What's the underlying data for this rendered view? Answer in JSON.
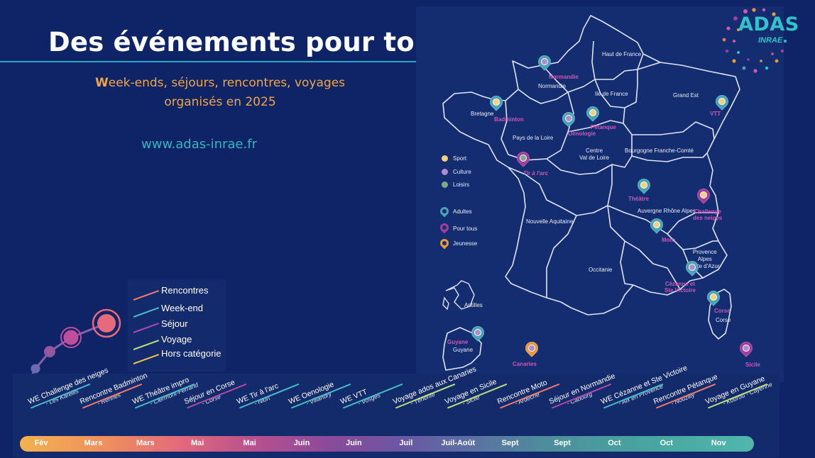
{
  "header": {
    "title": "Des événements pour tous",
    "subtitle_first": "W",
    "subtitle_line1_rest": "eek-ends, séjours, rencontres, voyages",
    "subtitle_line2": "organisés en 2025",
    "website": "www.adas-inrae.fr"
  },
  "logo": {
    "name": "ADAS",
    "sub": "INRAE"
  },
  "colors": {
    "background": "#0f2466",
    "title_rule": "#2aa8c8",
    "subtitle": "#f0a646",
    "website": "#31b6c2",
    "pin_label": "#d255b9",
    "sport": "#f5d27a",
    "culture": "#b28ad1",
    "loisirs": "#7fa98f",
    "adultes": "#4aa3b8",
    "pour_tous": "#a23d9b",
    "jeunesse": "#e79a3c"
  },
  "map": {
    "regions": [
      {
        "name": "Haut de France"
      },
      {
        "name": "Normandie"
      },
      {
        "name": "Ile de France"
      },
      {
        "name": "Grand Est"
      },
      {
        "name": "Bretagne"
      },
      {
        "name": "Pays de la Loire"
      },
      {
        "name": "Centre\nVal de Loire"
      },
      {
        "name": "Bourgogne Franche-Comté"
      },
      {
        "name": "Nouvelle Aquitaine"
      },
      {
        "name": "Auvergne Rhône Alpes"
      },
      {
        "name": "Occitanie"
      },
      {
        "name": "Provence\nAlpes\nCôte d'Azur"
      },
      {
        "name": "Corse"
      },
      {
        "name": "Antilles"
      },
      {
        "name": "Guyane"
      }
    ],
    "pins": [
      {
        "label": "Normandie",
        "pin": "adultes",
        "dot": "culture"
      },
      {
        "label": "Badminton",
        "pin": "adultes",
        "dot": "sport"
      },
      {
        "label": "Oenologie",
        "pin": "adultes",
        "dot": "culture"
      },
      {
        "label": "Pétanque",
        "pin": "adultes",
        "dot": "sport"
      },
      {
        "label": "VTT",
        "pin": "adultes",
        "dot": "sport"
      },
      {
        "label": "Tir à l'arc",
        "pin": "pour_tous",
        "dot": "loisirs"
      },
      {
        "label": "Théâtre",
        "pin": "adultes",
        "dot": "sport"
      },
      {
        "label": "Challenge\ndes neiges",
        "pin": "pour_tous",
        "dot": "sport"
      },
      {
        "label": "Moto",
        "pin": "adultes",
        "dot": "sport"
      },
      {
        "label": "Cézanne et\nSte Victoire",
        "pin": "adultes",
        "dot": "culture"
      },
      {
        "label": "Corse",
        "pin": "adultes",
        "dot": "sport"
      },
      {
        "label": "Guyane",
        "pin": "adultes",
        "dot": "culture"
      },
      {
        "label": "Canaries",
        "pin": "jeunesse",
        "dot": "culture"
      },
      {
        "label": "Sicile",
        "pin": "pour_tous",
        "dot": "culture"
      }
    ],
    "legend_dots": [
      {
        "label": "Sport",
        "color": "#f5d27a"
      },
      {
        "label": "Culture",
        "color": "#b28ad1"
      },
      {
        "label": "Loisirs",
        "color": "#7fa98f"
      }
    ],
    "legend_pins": [
      {
        "label": "Adultes",
        "color": "#4aa3b8"
      },
      {
        "label": "Pour tous",
        "color": "#a23d9b"
      },
      {
        "label": "Jeunesse",
        "color": "#e79a3c"
      }
    ]
  },
  "categories": [
    {
      "label": "Rencontres",
      "color": "#ef7a6a"
    },
    {
      "label": "Week-end",
      "color": "#43bdc8"
    },
    {
      "label": "Séjour",
      "color": "#b04aa5"
    },
    {
      "label": "Voyage",
      "color": "#b9e07a"
    },
    {
      "label": "Hors catégorie",
      "color": "#f0c24a"
    }
  ],
  "timeline": {
    "months": [
      "Fév",
      "Mars",
      "Mars",
      "Mai",
      "Mai",
      "Juin",
      "Juin",
      "Juil",
      "Juil-Août",
      "Sept",
      "Sept",
      "Oct",
      "Oct",
      "Nov"
    ],
    "events": [
      {
        "name": "WE Challenge des neiges",
        "place": "- Les Karellis",
        "category": "Week-end"
      },
      {
        "name": "Rencontre Badminton",
        "place": "- Rennes",
        "category": "Rencontres"
      },
      {
        "name": "WE Théâtre impro",
        "place": "- Clermont-Ferrand",
        "category": "Week-end"
      },
      {
        "name": "Séjour en Corse",
        "place": "- Corse",
        "category": "Séjour"
      },
      {
        "name": "WE Tir à l'arc",
        "place": "- Niort",
        "category": "Week-end"
      },
      {
        "name": "WE Oenologie",
        "place": "- Villandry",
        "category": "Week-end"
      },
      {
        "name": "WE VTT",
        "place": "- Vosges",
        "category": "Week-end"
      },
      {
        "name": "Voyage ados aux Canaries",
        "place": "- Ténérife",
        "category": "Voyage"
      },
      {
        "name": "Voyage en Sicile",
        "place": "- Sicile",
        "category": "Voyage"
      },
      {
        "name": "Rencontre Moto",
        "place": "- Ardèche",
        "category": "Rencontres"
      },
      {
        "name": "Séjour en Normandie",
        "place": "- Cabourg",
        "category": "Séjour"
      },
      {
        "name": "WE Cézanne et Ste Victoire",
        "place": "- Aix en Provence",
        "category": "Week-end"
      },
      {
        "name": "Rencontre Pétanque",
        "place": "- Nouzilly",
        "category": "Rencontres"
      },
      {
        "name": "Voyage en Guyane",
        "place": "- Kourou - Cayenne",
        "category": "Voyage"
      }
    ]
  }
}
